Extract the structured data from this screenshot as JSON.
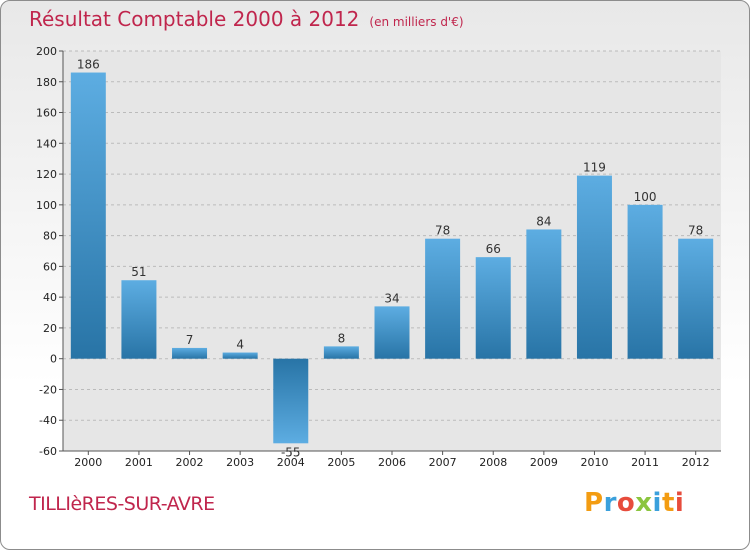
{
  "header": {
    "title": "Résultat Comptable 2000 à 2012",
    "subtitle": "(en milliers d'€)"
  },
  "footer": {
    "commune": "TILLIèRES-SUR-AVRE",
    "logo_text": "Proxiti",
    "logo_colors": [
      "#f39c12",
      "#3aa0dc",
      "#e74c3c",
      "#8bc53f",
      "#3aa0dc",
      "#f39c12",
      "#e74c3c"
    ]
  },
  "colors": {
    "bar_light": "#5dade2",
    "bar_dark": "#2874a6",
    "grid": "#bbbbbb",
    "plot_bg": "#e6e6e6"
  },
  "chart_data": {
    "type": "bar",
    "categories": [
      "2000",
      "2001",
      "2002",
      "2003",
      "2004",
      "2005",
      "2006",
      "2007",
      "2008",
      "2009",
      "2010",
      "2011",
      "2012"
    ],
    "values": [
      186,
      51,
      7,
      4,
      -55,
      8,
      34,
      78,
      66,
      84,
      119,
      100,
      78
    ],
    "ylim": [
      -60,
      200
    ],
    "yticks": [
      -60,
      -40,
      -20,
      0,
      20,
      40,
      60,
      80,
      100,
      120,
      140,
      160,
      180,
      200
    ],
    "grid": "horizontal dashed",
    "title": "Résultat Comptable 2000 à 2012",
    "xlabel": "",
    "ylabel": ""
  }
}
